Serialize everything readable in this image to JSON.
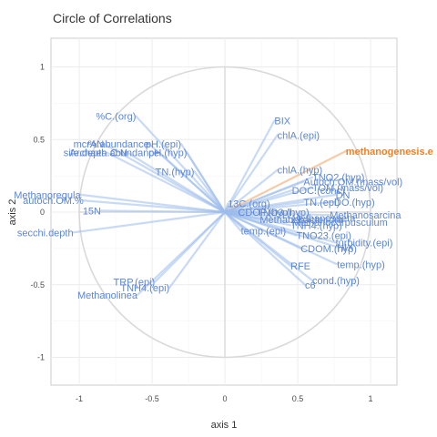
{
  "chart_data": {
    "type": "scatter",
    "title": "Circle of Correlations",
    "xlabel": "axis 1",
    "ylabel": "axis 2",
    "xlim": [
      -1.2,
      1.2
    ],
    "ylim": [
      -1.2,
      1.2
    ],
    "x_ticks": [
      "-1",
      "-0.5",
      "0",
      "0.5",
      "1"
    ],
    "y_ticks": [
      "1",
      "0.5",
      "0",
      "-0.5",
      "-1"
    ],
    "x_tick_values": [
      -1,
      -0.5,
      0,
      0.5,
      1
    ],
    "y_tick_values": [
      1,
      0.5,
      0,
      -0.5,
      -1
    ],
    "grid": true,
    "unit_circle": true,
    "colors": {
      "default": "#5b86d6",
      "highlight": "#f07f27",
      "circle": "#d9d9d9",
      "line": "#9cbcec"
    },
    "highlighted": "methanogenesis.e",
    "variables": [
      {
        "name": "%C.(org)",
        "x": -0.61,
        "y": 0.66
      },
      {
        "name": "%N",
        "x": -0.83,
        "y": 0.47
      },
      {
        "name": "mcrA.abundance",
        "x": -0.52,
        "y": 0.47
      },
      {
        "name": "pH.(epi)",
        "x": -0.3,
        "y": 0.47
      },
      {
        "name": "site.depth",
        "x": -0.81,
        "y": 0.41
      },
      {
        "name": "C:N",
        "x": -0.67,
        "y": 0.41
      },
      {
        "name": "Archaea.abundance",
        "x": -0.45,
        "y": 0.41
      },
      {
        "name": "pH.(hyp)",
        "x": -0.26,
        "y": 0.41
      },
      {
        "name": "TN.(hyp)",
        "x": -0.21,
        "y": 0.28
      },
      {
        "name": "Methanoregula",
        "x": -0.99,
        "y": 0.12
      },
      {
        "name": "autoch.OM.%",
        "x": -0.97,
        "y": 0.08
      },
      {
        "name": "15N",
        "x": -0.85,
        "y": 0.01
      },
      {
        "name": "secchi.depth",
        "x": -1.04,
        "y": -0.14
      },
      {
        "name": "TRP.(epi)",
        "x": -0.48,
        "y": -0.48
      },
      {
        "name": "TNH4.(epi)",
        "x": -0.38,
        "y": -0.52
      },
      {
        "name": "Methanolinea",
        "x": -0.6,
        "y": -0.57
      },
      {
        "name": "BIX",
        "x": 0.34,
        "y": 0.63
      },
      {
        "name": "chlA.(epi)",
        "x": 0.36,
        "y": 0.53
      },
      {
        "name": "methanogenesis.e",
        "x": 0.83,
        "y": 0.42
      },
      {
        "name": "chlA.(hyp)",
        "x": 0.36,
        "y": 0.29
      },
      {
        "name": "TNO2.(hyp)",
        "x": 0.6,
        "y": 0.24
      },
      {
        "name": "Autoch.OM.(mass/vol)",
        "x": 0.54,
        "y": 0.21
      },
      {
        "name": "TOM.(mass/vol)",
        "x": 0.6,
        "y": 0.17
      },
      {
        "name": "DOC.(conc)",
        "x": 0.46,
        "y": 0.15
      },
      {
        "name": "DN",
        "x": 0.76,
        "y": 0.12
      },
      {
        "name": "TN.(epi)",
        "x": 0.54,
        "y": 0.07
      },
      {
        "name": "DO.(hyp)",
        "x": 0.75,
        "y": 0.07
      },
      {
        "name": "13C.(org)",
        "x": 0.02,
        "y": 0.06
      },
      {
        "name": "CDOP.(hyp)",
        "x": 0.09,
        "y": 0.0
      },
      {
        "name": "TNO3.(hyp)",
        "x": 0.22,
        "y": 0.0
      },
      {
        "name": "Methanosarcina",
        "x": 0.72,
        "y": -0.02
      },
      {
        "name": "Methanobacterium",
        "x": 0.24,
        "y": -0.05
      },
      {
        "name": "Methanocorpusculum",
        "x": 0.46,
        "y": -0.07
      },
      {
        "name": "Methanosaeta",
        "x": 0.46,
        "y": -0.04
      },
      {
        "name": "TNH4.(hyp)",
        "x": 0.45,
        "y": -0.09
      },
      {
        "name": "temp.(epi)",
        "x": 0.11,
        "y": -0.13
      },
      {
        "name": "TNO23.(epi)",
        "x": 0.49,
        "y": -0.16
      },
      {
        "name": "turbidity.(epi)",
        "x": 0.76,
        "y": -0.21
      },
      {
        "name": "CDOM.(hyp)",
        "x": 0.52,
        "y": -0.25
      },
      {
        "name": "HIX",
        "x": 0.77,
        "y": -0.24
      },
      {
        "name": "temp.(hyp)",
        "x": 0.77,
        "y": -0.36
      },
      {
        "name": "RFE",
        "x": 0.45,
        "y": -0.37
      },
      {
        "name": "cond.(hyp)",
        "x": 0.6,
        "y": -0.47
      },
      {
        "name": "c6",
        "x": 0.55,
        "y": -0.5
      }
    ]
  }
}
